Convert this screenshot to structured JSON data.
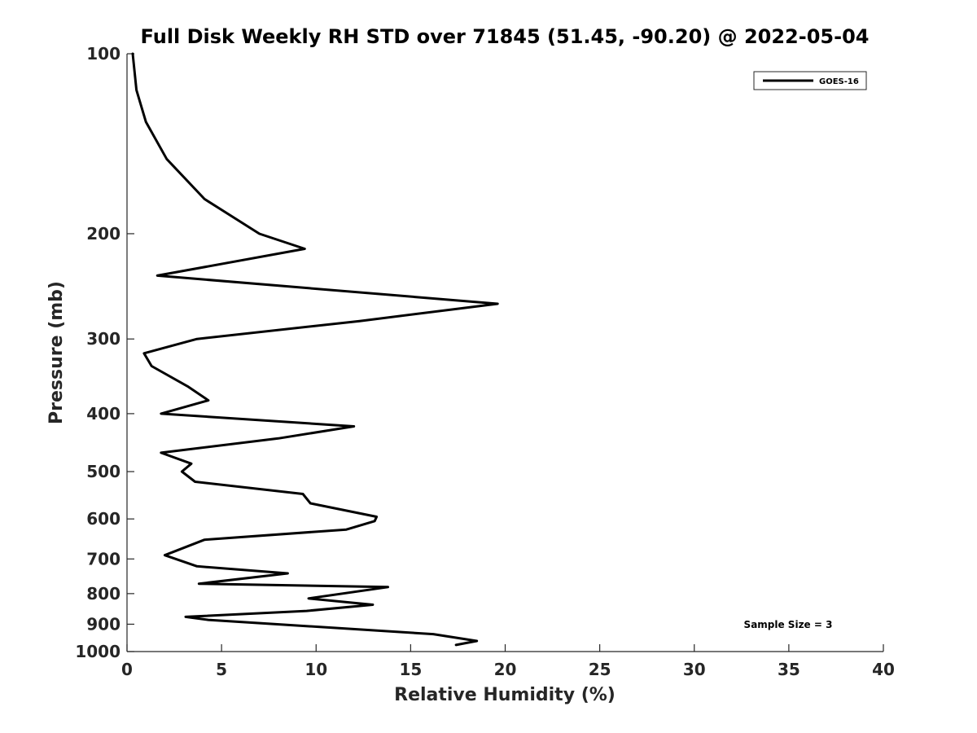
{
  "chart_data": {
    "type": "line",
    "title": "Full Disk Weekly RH STD over 71845 (51.45, -90.20) @ 2022-05-04",
    "xlabel": "Relative Humidity (%)",
    "ylabel": "Pressure (mb)",
    "xlim": [
      0,
      40
    ],
    "ylim": [
      100,
      1000
    ],
    "y_scale": "log",
    "y_reversed": true,
    "grid": false,
    "legend_position": "top-right",
    "xticks": [
      0,
      5,
      10,
      15,
      20,
      25,
      30,
      35,
      40
    ],
    "xtick_labels": [
      "0",
      "5",
      "10",
      "15",
      "20",
      "25",
      "30",
      "35",
      "40"
    ],
    "yticks": [
      100,
      200,
      300,
      400,
      500,
      600,
      700,
      800,
      900,
      1000
    ],
    "ytick_labels": [
      "100",
      "200",
      "300",
      "400",
      "500",
      "600",
      "700",
      "800",
      "900",
      "1000"
    ],
    "series": [
      {
        "name": "GOES-16",
        "color": "#000000",
        "x": [
          0.3,
          0.5,
          1.0,
          2.1,
          4.1,
          7.0,
          9.4,
          1.6,
          19.6,
          12.3,
          3.7,
          0.9,
          1.3,
          3.2,
          4.3,
          1.8,
          12.0,
          8.0,
          1.8,
          3.4,
          2.9,
          3.6,
          9.3,
          9.7,
          13.2,
          13.1,
          11.6,
          4.1,
          2.0,
          3.7,
          8.5,
          3.8,
          13.8,
          9.6,
          13.0,
          9.5,
          3.1,
          4.3,
          16.2,
          18.5,
          17.4
        ],
        "y": [
          100,
          115,
          130,
          150,
          175,
          200,
          212,
          235,
          262,
          280,
          300,
          317,
          333,
          360,
          380,
          400,
          420,
          440,
          465,
          485,
          500,
          520,
          545,
          565,
          595,
          605,
          625,
          650,
          690,
          720,
          740,
          770,
          780,
          815,
          835,
          855,
          875,
          885,
          935,
          960,
          975
        ]
      }
    ],
    "annotations": [
      "Sample Size = 3"
    ]
  }
}
